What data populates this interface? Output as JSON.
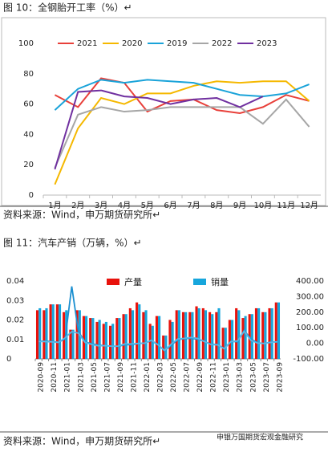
{
  "chart_data": [
    {
      "type": "line",
      "title": "图 10：全钢胎开工率（%）↵",
      "source": "资料来源：Wind，申万期货研究所↵",
      "categories": [
        "1月",
        "2月",
        "3月",
        "4月",
        "5月",
        "6月",
        "7月",
        "8月",
        "9月",
        "10月",
        "11月",
        "12月"
      ],
      "ylim": [
        0,
        100
      ],
      "yticks": [
        0,
        20,
        40,
        60,
        80,
        100
      ],
      "grid": false,
      "legend": "top",
      "series": [
        {
          "name": "2021",
          "color": "#e8403a",
          "values": [
            66,
            58,
            77,
            74,
            55,
            62,
            63,
            56,
            54,
            58,
            66,
            62
          ]
        },
        {
          "name": "2020",
          "color": "#f5b800",
          "values": [
            7,
            44,
            64,
            60,
            67,
            67,
            72,
            75,
            74,
            75,
            75,
            62
          ]
        },
        {
          "name": "2019",
          "color": "#1aa3d9",
          "values": [
            56,
            70,
            76,
            74,
            76,
            75,
            74,
            70,
            66,
            65,
            67,
            73
          ]
        },
        {
          "name": "2022",
          "color": "#a6a6a6",
          "values": [
            18,
            53,
            58,
            55,
            56,
            58,
            58,
            58,
            58,
            47,
            63,
            45
          ]
        },
        {
          "name": "2023",
          "color": "#7030a0",
          "values": [
            17,
            68,
            69,
            65,
            64,
            60,
            63,
            64,
            58,
            65,
            null,
            null
          ]
        }
      ]
    },
    {
      "type": "bar",
      "title": "图 11：汽车产销（万辆，%）↵",
      "source": "资料来源：Wind，申万期货研究所↵",
      "watermark": "申银万国期货宏观金融研究",
      "categories": [
        "2020-09",
        null,
        "2020-11",
        null,
        "2021-01",
        null,
        "2021-03",
        null,
        "2021-05",
        null,
        "2021-07",
        null,
        "2021-09",
        null,
        "2021-11",
        null,
        "2022-01",
        null,
        "2022-03",
        null,
        "2022-05",
        null,
        "2022-07",
        null,
        "2022-09",
        null,
        "2022-11",
        null,
        "2023-01",
        null,
        "2023-03",
        null,
        "2023-05",
        null,
        "2023-07",
        null,
        "2023-09"
      ],
      "ylim": [
        0,
        0.04
      ],
      "yticks": [
        0,
        0.01,
        0.02,
        0.03,
        0.04
      ],
      "y2lim": [
        -100,
        400
      ],
      "y2ticks": [
        {
          "value": -100,
          "label": "-100.00"
        },
        {
          "value": 0,
          "label": "0.00"
        },
        {
          "value": 100,
          "label": "100.00"
        },
        {
          "value": 200,
          "label": "200.00"
        },
        {
          "value": 300,
          "label": "300.00"
        },
        {
          "value": 400,
          "label": "400.00"
        }
      ],
      "legend": "top",
      "series": [
        {
          "name": "产量",
          "color": "#e8120c",
          "values": [
            0.025,
            0.025,
            0.028,
            0.028,
            0.024,
            0.015,
            0.025,
            0.022,
            0.021,
            0.019,
            0.018,
            0.017,
            0.021,
            0.023,
            0.026,
            0.029,
            0.024,
            0.018,
            0.022,
            0.012,
            0.02,
            0.025,
            0.024,
            0.024,
            0.027,
            0.026,
            0.024,
            0.024,
            0.016,
            0.02,
            0.026,
            0.021,
            0.023,
            0.026,
            0.024,
            0.026,
            0.029
          ]
        },
        {
          "name": "销量",
          "color": "#17a6dc",
          "values": [
            0.026,
            0.026,
            0.028,
            0.028,
            0.025,
            0.015,
            0.025,
            0.022,
            0.021,
            0.02,
            0.019,
            0.018,
            0.021,
            0.023,
            0.025,
            0.028,
            0.025,
            0.017,
            0.022,
            0.012,
            0.019,
            0.025,
            0.024,
            0.024,
            0.026,
            0.025,
            0.023,
            0.026,
            0.016,
            0.02,
            0.025,
            0.022,
            0.023,
            0.026,
            0.024,
            0.026,
            0.029
          ]
        },
        {
          "type": "line",
          "axis": "y2",
          "color": "#1b8fd0",
          "values": [
            13,
            13,
            12,
            6,
            30,
            365,
            75,
            9,
            -3,
            -12,
            -15,
            -18,
            -19,
            -9,
            -9,
            -2,
            1,
            18,
            -11,
            -48,
            -12,
            24,
            30,
            32,
            26,
            12,
            -7,
            -8,
            -35,
            13,
            10,
            83,
            27,
            4,
            -2,
            8,
            9
          ]
        },
        {
          "type": "line",
          "axis": "y2",
          "color": "#5bb8e6",
          "values": [
            12,
            11,
            9,
            6,
            35,
            75,
            65,
            6,
            -7,
            -16,
            -15,
            -19,
            -18,
            -4,
            -4,
            -1,
            1,
            20,
            -9,
            -46,
            -5,
            28,
            32,
            38,
            31,
            11,
            -8,
            -10,
            -35,
            11,
            15,
            77,
            19,
            2,
            -1,
            6,
            10
          ]
        }
      ]
    }
  ]
}
